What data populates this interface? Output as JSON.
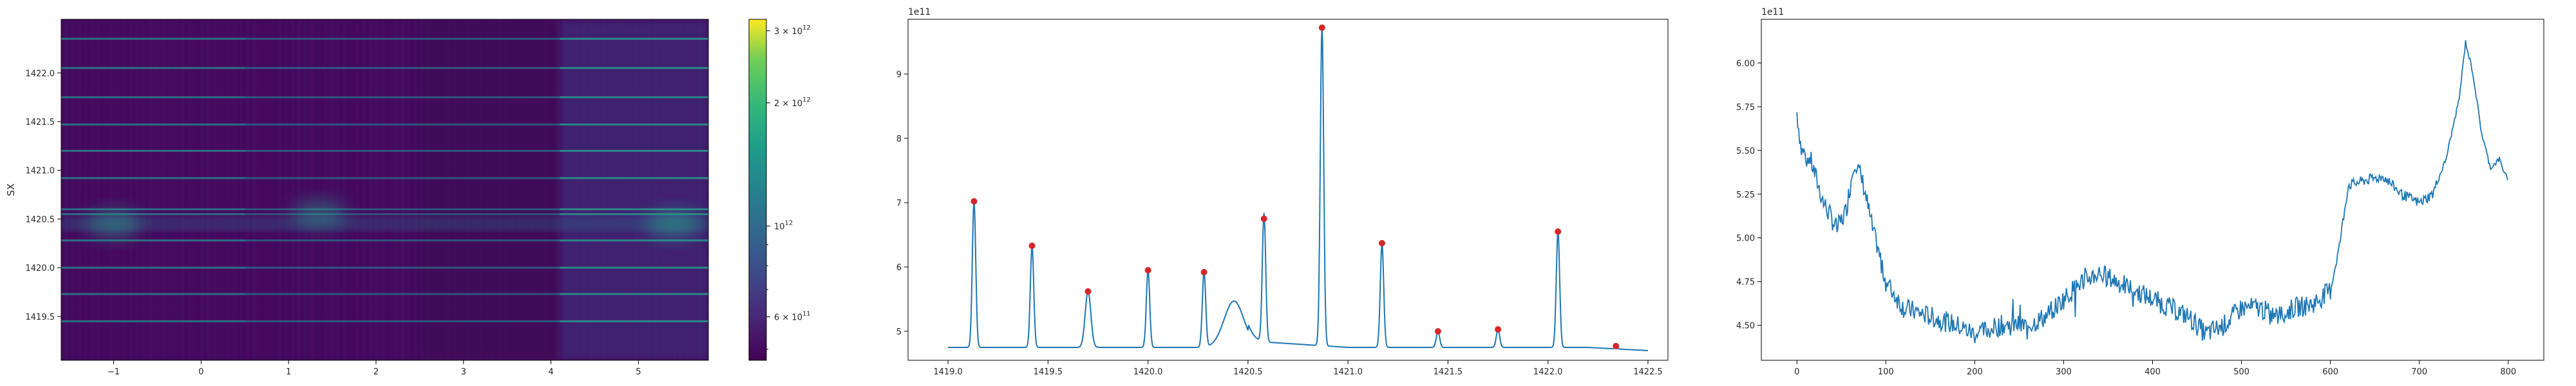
{
  "chart_data": [
    {
      "type": "heatmap",
      "title": "",
      "xlabel": "",
      "ylabel": "SX",
      "x_ticks": [
        "−1",
        "0",
        "1",
        "2",
        "3",
        "4",
        "5"
      ],
      "x_tick_values": [
        -1,
        0,
        1,
        2,
        3,
        4,
        5
      ],
      "y_ticks": [
        "1419.5",
        "1420.0",
        "1420.5",
        "1421.0",
        "1421.5",
        "1422.0"
      ],
      "y_tick_values": [
        1419.5,
        1420.0,
        1420.5,
        1421.0,
        1421.5,
        1422.0
      ],
      "xlim": [
        -1.6,
        5.8
      ],
      "ylim": [
        1419.05,
        1422.55
      ],
      "colormap": "viridis",
      "colorbar": {
        "scale": "log",
        "range": [
          470000000000.0,
          3200000000000.0
        ],
        "ticks": [
          {
            "value": 600000000000.0,
            "base": "6 × 10",
            "exp": "11"
          },
          {
            "value": 1000000000000.0,
            "base": "10",
            "exp": "12"
          },
          {
            "value": 2000000000000.0,
            "base": "2 × 10",
            "exp": "12"
          },
          {
            "value": 3000000000000.0,
            "base": "3 × 10",
            "exp": "12"
          }
        ]
      },
      "horizontal_lines_y": [
        1419.45,
        1419.73,
        1420.0,
        1420.28,
        1420.55,
        1420.6,
        1420.92,
        1421.2,
        1421.47,
        1421.75,
        1422.05,
        1422.35
      ],
      "vertical_bands": [
        {
          "x0": 2.5,
          "x1": 4.1,
          "kind": "dark"
        },
        {
          "x0": 4.1,
          "x1": 5.8,
          "kind": "bright"
        }
      ],
      "blobs": [
        {
          "x": -1.0,
          "y": 1420.45,
          "level": 0.55
        },
        {
          "x": 1.35,
          "y": 1420.55,
          "level": 0.5
        },
        {
          "x": 5.4,
          "y": 1420.45,
          "level": 0.6
        }
      ]
    },
    {
      "type": "line",
      "title": "",
      "xlabel": "",
      "ylabel": "",
      "offset_text": "1e11",
      "x_ticks": [
        "1419.0",
        "1419.5",
        "1420.0",
        "1420.5",
        "1421.0",
        "1421.5",
        "1422.0",
        "1422.5"
      ],
      "x_tick_values": [
        1419.0,
        1419.5,
        1420.0,
        1420.5,
        1421.0,
        1421.5,
        1422.0,
        1422.5
      ],
      "y_ticks": [
        "5",
        "6",
        "7",
        "8",
        "9"
      ],
      "y_tick_values": [
        5,
        6,
        7,
        8,
        9
      ],
      "xlim": [
        1418.8,
        1422.6
      ],
      "ylim": [
        4.55,
        9.85
      ],
      "baseline": 4.75,
      "line_color": "#1f77b4",
      "marker_color": "#d62728",
      "peaks": [
        {
          "x": 1419.13,
          "y": 7.02,
          "width": 0.012
        },
        {
          "x": 1419.42,
          "y": 6.33,
          "width": 0.012
        },
        {
          "x": 1419.7,
          "y": 5.62,
          "width": 0.02
        },
        {
          "x": 1420.0,
          "y": 5.95,
          "width": 0.012
        },
        {
          "x": 1420.28,
          "y": 5.92,
          "width": 0.012
        },
        {
          "x": 1420.58,
          "y": 6.75,
          "width": 0.012
        },
        {
          "x": 1420.87,
          "y": 9.72,
          "width": 0.012
        },
        {
          "x": 1421.17,
          "y": 6.37,
          "width": 0.012
        },
        {
          "x": 1421.45,
          "y": 5.0,
          "width": 0.012
        },
        {
          "x": 1421.75,
          "y": 5.03,
          "width": 0.012
        },
        {
          "x": 1422.05,
          "y": 6.55,
          "width": 0.012
        },
        {
          "x": 1422.34,
          "y": 4.77,
          "width": 0.01
        }
      ],
      "hump": {
        "x": 1420.43,
        "y": 0.72,
        "width": 0.07
      },
      "plateau": {
        "x0": 1420.5,
        "x1": 1421.0,
        "y": 0.1
      },
      "x_range": [
        1419.0,
        1422.5
      ]
    },
    {
      "type": "line",
      "title": "",
      "xlabel": "",
      "ylabel": "",
      "offset_text": "1e11",
      "x_ticks": [
        "0",
        "100",
        "200",
        "300",
        "400",
        "500",
        "600",
        "700",
        "800"
      ],
      "x_tick_values": [
        0,
        100,
        200,
        300,
        400,
        500,
        600,
        700,
        800
      ],
      "y_ticks": [
        "4.50",
        "4.75",
        "5.00",
        "5.25",
        "5.50",
        "5.75",
        "6.00"
      ],
      "y_tick_values": [
        4.5,
        4.75,
        5.0,
        5.25,
        5.5,
        5.75,
        6.0
      ],
      "xlim": [
        -40,
        840
      ],
      "ylim": [
        4.3,
        6.25
      ],
      "line_color": "#1f77b4",
      "anchors_x": [
        0,
        5,
        15,
        30,
        45,
        55,
        65,
        75,
        85,
        100,
        120,
        150,
        180,
        200,
        230,
        260,
        280,
        300,
        320,
        340,
        360,
        380,
        400,
        420,
        440,
        460,
        480,
        500,
        520,
        540,
        560,
        580,
        600,
        610,
        620,
        640,
        660,
        680,
        700,
        715,
        730,
        745,
        752,
        760,
        770,
        780,
        790,
        800
      ],
      "anchors_y": [
        5.72,
        5.5,
        5.45,
        5.2,
        5.05,
        5.15,
        5.45,
        5.3,
        5.05,
        4.75,
        4.6,
        4.55,
        4.5,
        4.45,
        4.5,
        4.5,
        4.55,
        4.65,
        4.75,
        4.8,
        4.75,
        4.7,
        4.65,
        4.6,
        4.55,
        4.45,
        4.5,
        4.6,
        4.6,
        4.55,
        4.6,
        4.62,
        4.7,
        4.95,
        5.3,
        5.33,
        5.35,
        5.25,
        5.2,
        5.25,
        5.45,
        5.8,
        6.12,
        5.95,
        5.6,
        5.4,
        5.45,
        5.32
      ]
    }
  ]
}
